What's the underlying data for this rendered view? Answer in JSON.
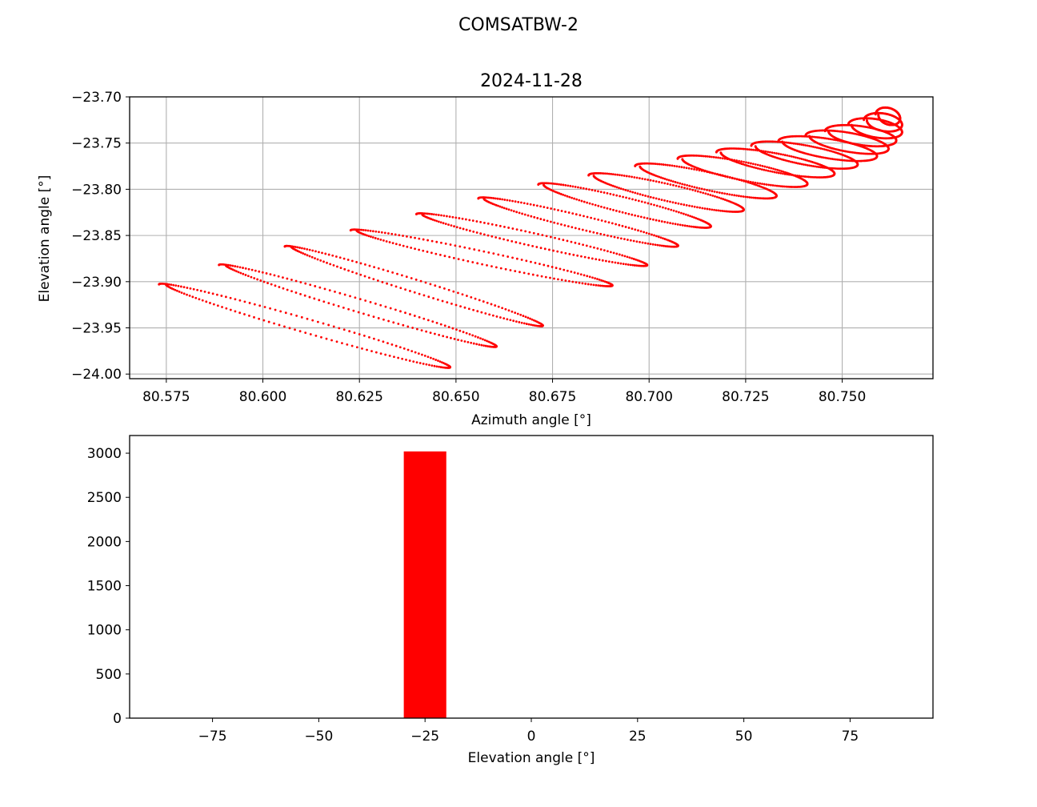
{
  "figure_title": "COMSATBW-2",
  "colors": {
    "series": "#ff0000",
    "grid": "#b0b0b0",
    "axes": "#000000"
  },
  "chart_data": [
    {
      "type": "scatter",
      "title": "2024-11-28",
      "xlabel": "Azimuth angle [°]",
      "ylabel": "Elevation angle [°]",
      "xlim": [
        80.5655,
        80.7735
      ],
      "ylim": [
        -24.005,
        -23.7
      ],
      "xticks": [
        80.575,
        80.6,
        80.625,
        80.65,
        80.675,
        80.7,
        80.725,
        80.75
      ],
      "xtick_labels": [
        "80.575",
        "80.600",
        "80.625",
        "80.650",
        "80.675",
        "80.700",
        "80.725",
        "80.750"
      ],
      "yticks": [
        -23.7,
        -23.75,
        -23.8,
        -23.85,
        -23.9,
        -23.95,
        -24.0
      ],
      "ytick_labels": [
        "−23.70",
        "−23.75",
        "−23.80",
        "−23.85",
        "−23.90",
        "−23.95",
        "−24.00"
      ],
      "grid": true,
      "marker": "dot",
      "series": [
        {
          "loops": [
            {
              "x1": 80.574,
              "y1": -23.903,
              "x2": 80.6485,
              "y2": -23.9925,
              "w": 0.0038,
              "spiral": 0.006
            },
            {
              "x1": 80.5895,
              "y1": -23.882,
              "x2": 80.6605,
              "y2": -23.97,
              "w": 0.0036,
              "spiral": 0.0058
            },
            {
              "x1": 80.6065,
              "y1": -23.862,
              "x2": 80.6725,
              "y2": -23.9475,
              "w": 0.0035,
              "spiral": 0.0055
            },
            {
              "x1": 80.6235,
              "y1": -23.8445,
              "x2": 80.6905,
              "y2": -23.904,
              "w": 0.0034,
              "spiral": 0.0052
            },
            {
              "x1": 80.6405,
              "y1": -23.827,
              "x2": 80.6995,
              "y2": -23.882,
              "w": 0.0034,
              "spiral": 0.005
            },
            {
              "x1": 80.6565,
              "y1": -23.81,
              "x2": 80.7075,
              "y2": -23.861,
              "w": 0.0036,
              "spiral": 0.0048
            },
            {
              "x1": 80.672,
              "y1": -23.795,
              "x2": 80.716,
              "y2": -23.84,
              "w": 0.004,
              "spiral": 0.0046
            },
            {
              "x1": 80.685,
              "y1": -23.785,
              "x2": 80.7245,
              "y2": -23.822,
              "w": 0.0044,
              "spiral": 0.0044
            },
            {
              "x1": 80.697,
              "y1": -23.775,
              "x2": 80.733,
              "y2": -23.807,
              "w": 0.0046,
              "spiral": 0.0042
            },
            {
              "x1": 80.708,
              "y1": -23.767,
              "x2": 80.741,
              "y2": -23.794,
              "w": 0.0047,
              "spiral": 0.004
            },
            {
              "x1": 80.718,
              "y1": -23.76,
              "x2": 80.748,
              "y2": -23.783,
              "w": 0.0048,
              "spiral": 0.0038
            },
            {
              "x1": 80.727,
              "y1": -23.753,
              "x2": 80.754,
              "y2": -23.773,
              "w": 0.0049,
              "spiral": 0.0036
            },
            {
              "x1": 80.734,
              "y1": -23.748,
              "x2": 80.759,
              "y2": -23.764,
              "w": 0.0049,
              "spiral": 0.0034
            },
            {
              "x1": 80.741,
              "y1": -23.742,
              "x2": 80.762,
              "y2": -23.756,
              "w": 0.0048,
              "spiral": 0.0032
            },
            {
              "x1": 80.746,
              "y1": -23.737,
              "x2": 80.764,
              "y2": -23.747,
              "w": 0.0047,
              "spiral": 0.003
            },
            {
              "x1": 80.752,
              "y1": -23.73,
              "x2": 80.7655,
              "y2": -23.738,
              "w": 0.0046,
              "spiral": 0.0028
            },
            {
              "x1": 80.756,
              "y1": -23.725,
              "x2": 80.7655,
              "y2": -23.73,
              "w": 0.0044,
              "spiral": 0.0026
            },
            {
              "x1": 80.759,
              "y1": -23.719,
              "x2": 80.765,
              "y2": -23.723,
              "w": 0.0042,
              "spiral": 0.0024
            }
          ]
        }
      ]
    },
    {
      "type": "bar",
      "xlabel": "Elevation angle [°]",
      "ylabel": "",
      "xlim": [
        -94.5,
        94.5
      ],
      "ylim": [
        0,
        3200
      ],
      "xticks": [
        -75,
        -50,
        -25,
        0,
        25,
        50,
        75
      ],
      "xtick_labels": [
        "−75",
        "−50",
        "−25",
        "0",
        "25",
        "50",
        "75"
      ],
      "yticks": [
        0,
        500,
        1000,
        1500,
        2000,
        2500,
        3000
      ],
      "ytick_labels": [
        "0",
        "500",
        "1000",
        "1500",
        "2000",
        "2500",
        "3000"
      ],
      "grid": false,
      "bins": [
        {
          "x0": -30,
          "x1": -20,
          "count": 3020
        }
      ]
    }
  ]
}
